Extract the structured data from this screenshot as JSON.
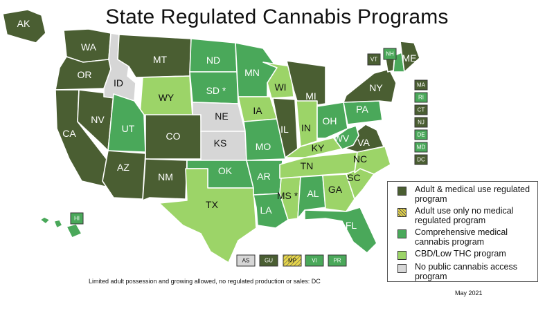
{
  "title": "State Regulated Cannabis Programs",
  "colors": {
    "adult": "#4a5e32",
    "adult_only": "#e8d74a",
    "medical": "#4aa85a",
    "cbd": "#9cd468",
    "none": "#d6d6d6"
  },
  "states": [
    {
      "abbr": "WA",
      "cat": "adult"
    },
    {
      "abbr": "OR",
      "cat": "adult"
    },
    {
      "abbr": "CA",
      "cat": "adult"
    },
    {
      "abbr": "NV",
      "cat": "adult"
    },
    {
      "abbr": "ID",
      "cat": "none"
    },
    {
      "abbr": "MT",
      "cat": "adult"
    },
    {
      "abbr": "WY",
      "cat": "cbd"
    },
    {
      "abbr": "UT",
      "cat": "medical"
    },
    {
      "abbr": "CO",
      "cat": "adult"
    },
    {
      "abbr": "AZ",
      "cat": "adult"
    },
    {
      "abbr": "NM",
      "cat": "adult"
    },
    {
      "abbr": "ND",
      "cat": "medical"
    },
    {
      "abbr": "SD",
      "cat": "medical",
      "asterisk": true
    },
    {
      "abbr": "NE",
      "cat": "none"
    },
    {
      "abbr": "KS",
      "cat": "none"
    },
    {
      "abbr": "OK",
      "cat": "medical"
    },
    {
      "abbr": "TX",
      "cat": "cbd"
    },
    {
      "abbr": "MN",
      "cat": "medical"
    },
    {
      "abbr": "IA",
      "cat": "cbd"
    },
    {
      "abbr": "MO",
      "cat": "medical"
    },
    {
      "abbr": "AR",
      "cat": "medical"
    },
    {
      "abbr": "LA",
      "cat": "medical"
    },
    {
      "abbr": "WI",
      "cat": "cbd"
    },
    {
      "abbr": "IL",
      "cat": "adult"
    },
    {
      "abbr": "MI",
      "cat": "adult"
    },
    {
      "abbr": "IN",
      "cat": "cbd"
    },
    {
      "abbr": "OH",
      "cat": "medical"
    },
    {
      "abbr": "KY",
      "cat": "cbd"
    },
    {
      "abbr": "TN",
      "cat": "cbd"
    },
    {
      "abbr": "MS",
      "cat": "cbd",
      "asterisk": true
    },
    {
      "abbr": "AL",
      "cat": "medical"
    },
    {
      "abbr": "GA",
      "cat": "cbd"
    },
    {
      "abbr": "FL",
      "cat": "medical"
    },
    {
      "abbr": "SC",
      "cat": "cbd"
    },
    {
      "abbr": "NC",
      "cat": "cbd"
    },
    {
      "abbr": "VA",
      "cat": "adult"
    },
    {
      "abbr": "WV",
      "cat": "medical"
    },
    {
      "abbr": "PA",
      "cat": "medical"
    },
    {
      "abbr": "NY",
      "cat": "adult"
    },
    {
      "abbr": "VT",
      "cat": "adult"
    },
    {
      "abbr": "NH",
      "cat": "medical"
    },
    {
      "abbr": "ME",
      "cat": "adult"
    },
    {
      "abbr": "AK",
      "cat": "adult"
    },
    {
      "abbr": "HI",
      "cat": "medical"
    }
  ],
  "east_boxes": [
    {
      "abbr": "MA",
      "cat": "adult"
    },
    {
      "abbr": "RI",
      "cat": "medical"
    },
    {
      "abbr": "CT",
      "cat": "adult"
    },
    {
      "abbr": "NJ",
      "cat": "adult"
    },
    {
      "abbr": "DE",
      "cat": "medical"
    },
    {
      "abbr": "MD",
      "cat": "medical"
    },
    {
      "abbr": "DC",
      "cat": "adult"
    }
  ],
  "territory_boxes": [
    {
      "abbr": "AS",
      "cat": "none"
    },
    {
      "abbr": "GU",
      "cat": "adult"
    },
    {
      "abbr": "MP",
      "cat": "adult_only"
    },
    {
      "abbr": "VI",
      "cat": "medical"
    },
    {
      "abbr": "PR",
      "cat": "medical"
    }
  ],
  "legend": [
    {
      "cat": "adult",
      "label": "Adult & medical use regulated program"
    },
    {
      "cat": "adult_only",
      "label": "Adult use only no medical regulated program"
    },
    {
      "cat": "medical",
      "label": "Comprehensive medical cannabis program"
    },
    {
      "cat": "cbd",
      "label": "CBD/Low THC program"
    },
    {
      "cat": "none",
      "label": "No public cannabis access program"
    }
  ],
  "footnote": "Limited adult possession and growing allowed, no regulated production or sales: DC",
  "date": "May 2021"
}
